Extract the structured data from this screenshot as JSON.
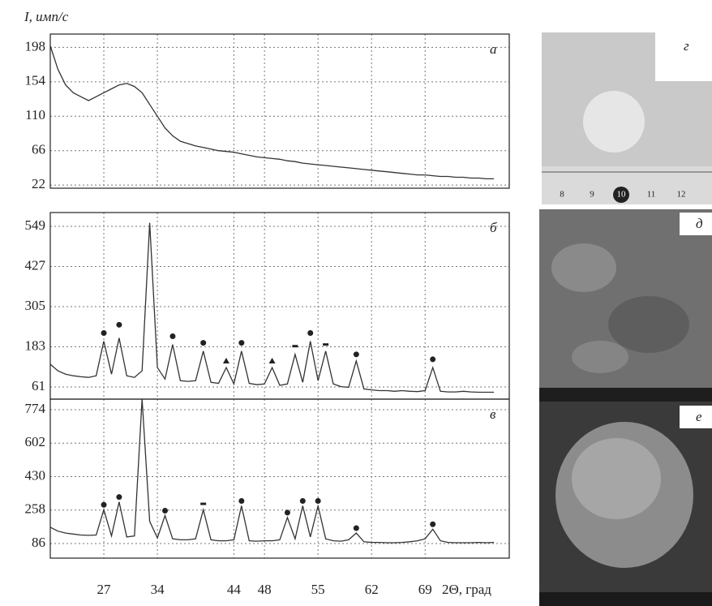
{
  "chart_data": [
    {
      "type": "line",
      "ylabel": "I, имп/с",
      "label": "а",
      "color": "#333333",
      "x": [
        20,
        21,
        22,
        23,
        24,
        25,
        26,
        27,
        28,
        29,
        30,
        31,
        32,
        33,
        34,
        35,
        36,
        37,
        38,
        39,
        40,
        41,
        42,
        43,
        44,
        45,
        46,
        47,
        48,
        49,
        50,
        51,
        52,
        53,
        54,
        55,
        56,
        57,
        58,
        59,
        60,
        61,
        62,
        63,
        64,
        65,
        66,
        67,
        68,
        69,
        70,
        71,
        72,
        73,
        74,
        75,
        76,
        77,
        78
      ],
      "values": [
        200,
        170,
        150,
        140,
        135,
        130,
        135,
        140,
        145,
        150,
        152,
        148,
        140,
        125,
        110,
        95,
        85,
        78,
        75,
        72,
        70,
        68,
        66,
        65,
        64,
        62,
        60,
        58,
        57,
        56,
        55,
        53,
        52,
        50,
        49,
        48,
        47,
        46,
        45,
        44,
        43,
        42,
        41,
        40,
        39,
        38,
        37,
        36,
        35,
        35,
        34,
        33,
        33,
        32,
        32,
        31,
        31,
        30,
        30
      ],
      "xlim": [
        20,
        80
      ],
      "ylim": [
        18,
        215
      ],
      "yticks": [
        22,
        66,
        110,
        154,
        198
      ],
      "grid": true
    },
    {
      "type": "line",
      "label": "б",
      "color": "#333333",
      "x": [
        20,
        21,
        22,
        23,
        24,
        25,
        26,
        27,
        28,
        29,
        30,
        31,
        32,
        33,
        34,
        35,
        36,
        37,
        38,
        39,
        40,
        41,
        42,
        43,
        44,
        45,
        46,
        47,
        48,
        49,
        50,
        51,
        52,
        53,
        54,
        55,
        56,
        57,
        58,
        59,
        60,
        61,
        62,
        63,
        64,
        65,
        66,
        67,
        68,
        69,
        70,
        71,
        72,
        73,
        74,
        75,
        76,
        77,
        78
      ],
      "values": [
        130,
        110,
        100,
        95,
        92,
        90,
        95,
        200,
        100,
        210,
        95,
        90,
        110,
        560,
        120,
        85,
        190,
        80,
        78,
        80,
        170,
        75,
        72,
        120,
        70,
        170,
        72,
        68,
        70,
        120,
        66,
        70,
        160,
        75,
        200,
        80,
        170,
        70,
        62,
        60,
        140,
        55,
        52,
        50,
        50,
        48,
        50,
        48,
        47,
        50,
        120,
        48,
        46,
        46,
        48,
        46,
        45,
        45,
        45
      ],
      "markers": [
        {
          "x": 27,
          "y": 225,
          "shape": "circle"
        },
        {
          "x": 29,
          "y": 250,
          "shape": "circle"
        },
        {
          "x": 36,
          "y": 215,
          "shape": "circle"
        },
        {
          "x": 40,
          "y": 195,
          "shape": "circle"
        },
        {
          "x": 43,
          "y": 140,
          "shape": "triangle"
        },
        {
          "x": 45,
          "y": 195,
          "shape": "circle"
        },
        {
          "x": 49,
          "y": 140,
          "shape": "triangle"
        },
        {
          "x": 52,
          "y": 185,
          "shape": "square"
        },
        {
          "x": 54,
          "y": 225,
          "shape": "circle"
        },
        {
          "x": 56,
          "y": 190,
          "shape": "square"
        },
        {
          "x": 60,
          "y": 160,
          "shape": "circle"
        },
        {
          "x": 70,
          "y": 145,
          "shape": "circle"
        }
      ],
      "xlim": [
        20,
        80
      ],
      "ylim": [
        24,
        591
      ],
      "yticks": [
        61,
        183,
        305,
        427,
        549
      ],
      "grid": true
    },
    {
      "type": "line",
      "label": "в",
      "color": "#333333",
      "xlabel": "2Θ, град",
      "x": [
        20,
        21,
        22,
        23,
        24,
        25,
        26,
        27,
        28,
        29,
        30,
        31,
        32,
        33,
        34,
        35,
        36,
        37,
        38,
        39,
        40,
        41,
        42,
        43,
        44,
        45,
        46,
        47,
        48,
        49,
        50,
        51,
        52,
        53,
        54,
        55,
        56,
        57,
        58,
        59,
        60,
        61,
        62,
        63,
        64,
        65,
        66,
        67,
        68,
        69,
        70,
        71,
        72,
        73,
        74,
        75,
        76,
        77,
        78
      ],
      "values": [
        170,
        150,
        140,
        135,
        130,
        128,
        130,
        260,
        125,
        300,
        120,
        125,
        828,
        200,
        115,
        230,
        110,
        105,
        105,
        110,
        260,
        105,
        100,
        100,
        105,
        280,
        100,
        98,
        100,
        100,
        105,
        220,
        110,
        280,
        120,
        280,
        110,
        100,
        98,
        105,
        140,
        95,
        92,
        92,
        90,
        90,
        92,
        95,
        100,
        110,
        160,
        100,
        92,
        90,
        90,
        90,
        92,
        90,
        92
      ],
      "markers": [
        {
          "x": 27,
          "y": 285,
          "shape": "circle"
        },
        {
          "x": 29,
          "y": 325,
          "shape": "circle"
        },
        {
          "x": 35,
          "y": 255,
          "shape": "circle"
        },
        {
          "x": 40,
          "y": 290,
          "shape": "square"
        },
        {
          "x": 45,
          "y": 305,
          "shape": "circle"
        },
        {
          "x": 51,
          "y": 245,
          "shape": "circle"
        },
        {
          "x": 53,
          "y": 305,
          "shape": "circle"
        },
        {
          "x": 55,
          "y": 305,
          "shape": "circle"
        },
        {
          "x": 60,
          "y": 165,
          "shape": "circle"
        },
        {
          "x": 70,
          "y": 185,
          "shape": "circle"
        }
      ],
      "xlim": [
        20,
        80
      ],
      "xticks": [
        27,
        34,
        44,
        48,
        55,
        62,
        69
      ],
      "ylim": [
        11,
        828
      ],
      "yticks": [
        86,
        258,
        430,
        602,
        774
      ],
      "grid": true
    }
  ],
  "photos": [
    {
      "label": "г",
      "ruler": [
        "8",
        "9",
        "10",
        "11",
        "12"
      ]
    },
    {
      "label": "д"
    },
    {
      "label": "е"
    }
  ]
}
